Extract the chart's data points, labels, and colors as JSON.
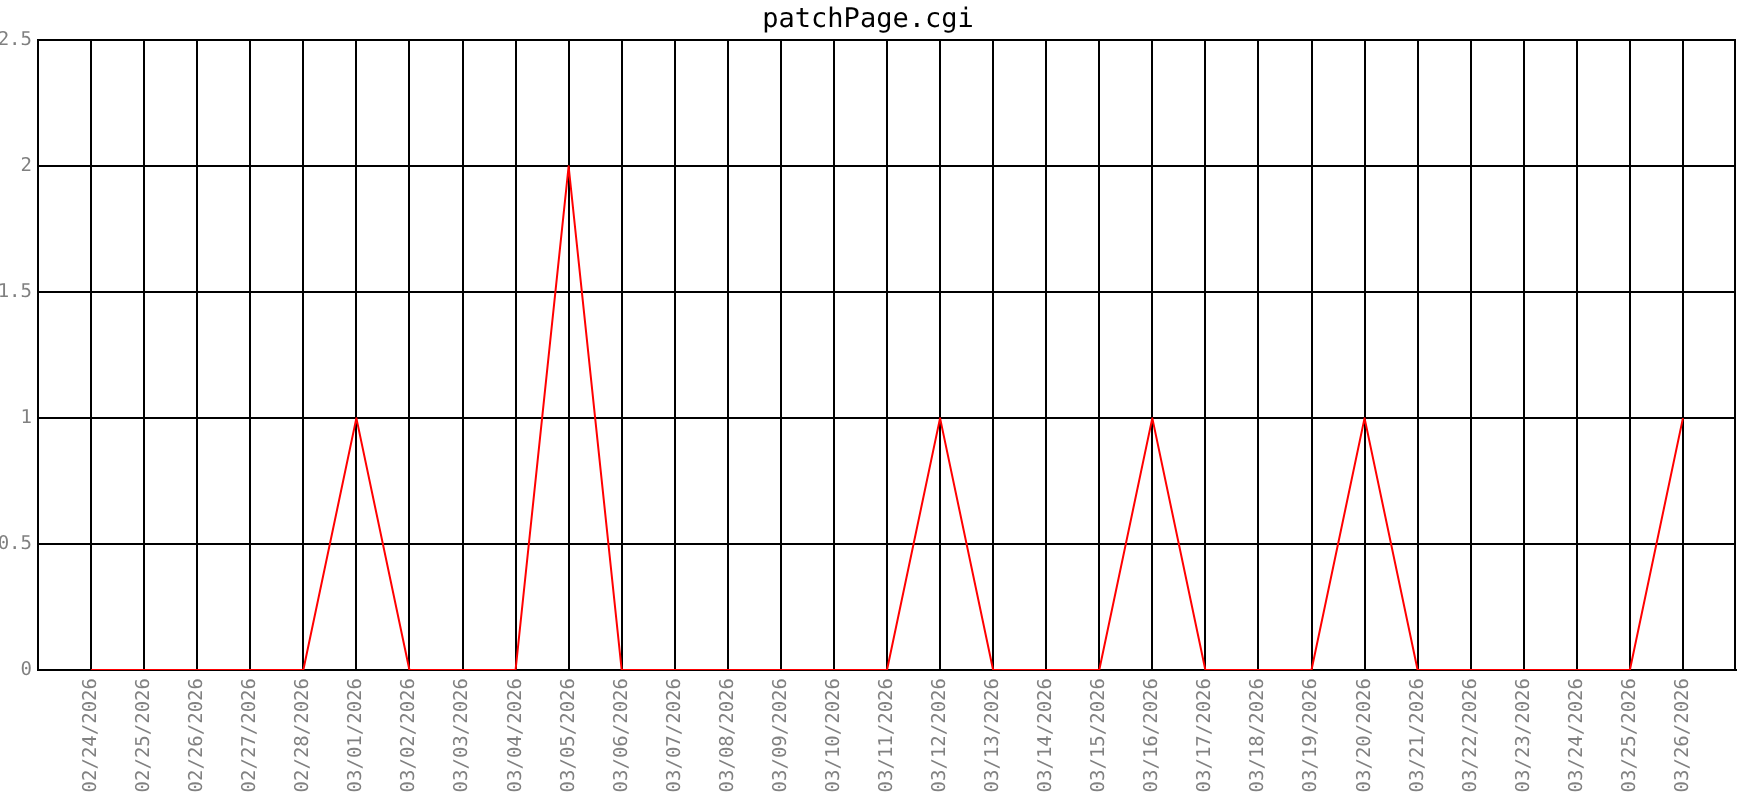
{
  "chart_data": {
    "type": "line",
    "title": "patchPage.cgi",
    "categories": [
      "02/24/2026",
      "02/25/2026",
      "02/26/2026",
      "02/27/2026",
      "02/28/2026",
      "03/01/2026",
      "03/02/2026",
      "03/03/2026",
      "03/04/2026",
      "03/05/2026",
      "03/06/2026",
      "03/07/2026",
      "03/08/2026",
      "03/09/2026",
      "03/10/2026",
      "03/11/2026",
      "03/12/2026",
      "03/13/2026",
      "03/14/2026",
      "03/15/2026",
      "03/16/2026",
      "03/17/2026",
      "03/18/2026",
      "03/19/2026",
      "03/20/2026",
      "03/21/2026",
      "03/22/2026",
      "03/23/2026",
      "03/24/2026",
      "03/25/2026",
      "03/26/2026"
    ],
    "series": [
      {
        "color": "#ff0000",
        "values": [
          0,
          0,
          0,
          0,
          0,
          1,
          0,
          0,
          0,
          2,
          0,
          0,
          0,
          0,
          0,
          0,
          1,
          0,
          0,
          0,
          1,
          0,
          0,
          0,
          1,
          0,
          0,
          0,
          0,
          0,
          1
        ]
      }
    ],
    "ylim": [
      0,
      2.5
    ],
    "yticks": [
      0,
      0.5,
      1,
      1.5,
      2,
      2.5
    ],
    "grid": true
  }
}
